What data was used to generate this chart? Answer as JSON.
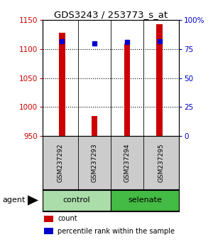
{
  "title": "GDS3243 / 253773_s_at",
  "samples": [
    "GSM237292",
    "GSM237293",
    "GSM237294",
    "GSM237295"
  ],
  "count_values": [
    1128,
    984,
    1110,
    1143
  ],
  "percentile_values": [
    82,
    80,
    81,
    82
  ],
  "ylim_left": [
    950,
    1150
  ],
  "ylim_right": [
    0,
    100
  ],
  "yticks_left": [
    950,
    1000,
    1050,
    1100,
    1150
  ],
  "yticks_right": [
    0,
    25,
    50,
    75,
    100
  ],
  "yticklabels_right": [
    "0",
    "25",
    "50",
    "75",
    "100%"
  ],
  "bar_color": "#cc0000",
  "dot_color": "#0000cc",
  "group_label": "agent",
  "legend_count": "count",
  "legend_pct": "percentile rank within the sample",
  "background_color": "#ffffff",
  "grid_yticks": [
    1000,
    1050,
    1100
  ],
  "sample_bg": "#cccccc",
  "control_color": "#aaddaa",
  "selenate_color": "#44bb44",
  "bar_width": 0.18
}
